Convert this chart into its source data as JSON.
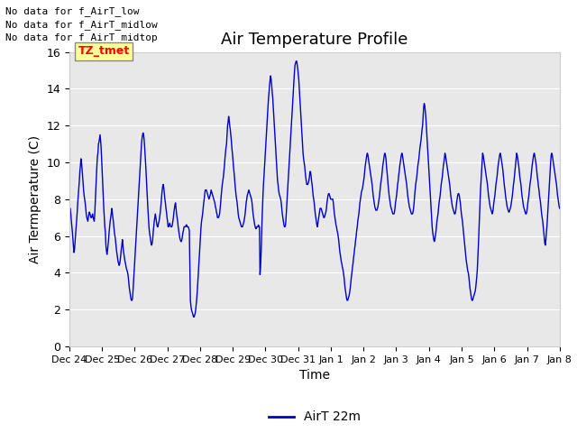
{
  "title": "Air Temperature Profile",
  "xlabel": "Time",
  "ylabel": "Air Termperature (C)",
  "legend_label": "AirT 22m",
  "line_color": "#0000cc",
  "ylim": [
    0,
    16
  ],
  "yticks": [
    0,
    2,
    4,
    6,
    8,
    10,
    12,
    14,
    16
  ],
  "annotations": [
    "No data for f_AirT_low",
    "No data for f_AirT_midlow",
    "No data for f_AirT_midtop"
  ],
  "annotation_box_label": "TZ_tmet",
  "x_tick_labels": [
    "Dec 24",
    "Dec 25",
    "Dec 26",
    "Dec 27",
    "Dec 28",
    "Dec 29",
    "Dec 30",
    "Dec 31",
    "Jan 1",
    "Jan 2",
    "Jan 3",
    "Jan 4",
    "Jan 5",
    "Jan 6",
    "Jan 7",
    "Jan 8"
  ],
  "temp_data": [
    7.1,
    7.3,
    7.5,
    7.2,
    6.8,
    6.5,
    6.2,
    5.8,
    5.4,
    5.1,
    5.3,
    5.7,
    6.1,
    6.5,
    6.9,
    7.3,
    7.8,
    8.2,
    8.6,
    9.0,
    9.5,
    9.8,
    10.2,
    10.0,
    9.7,
    9.3,
    8.9,
    8.5,
    8.2,
    8.0,
    7.8,
    7.5,
    7.2,
    7.0,
    6.9,
    6.8,
    7.0,
    7.2,
    7.3,
    7.2,
    7.1,
    7.0,
    7.0,
    7.1,
    7.2,
    7.0,
    6.9,
    6.8,
    7.2,
    7.8,
    8.5,
    9.2,
    9.8,
    10.3,
    10.5,
    11.0,
    11.1,
    11.3,
    11.5,
    11.2,
    10.8,
    10.2,
    9.5,
    8.8,
    8.0,
    7.5,
    7.0,
    6.5,
    6.2,
    5.5,
    5.2,
    5.0,
    5.2,
    5.5,
    5.8,
    6.2,
    6.5,
    6.8,
    7.0,
    7.2,
    7.5,
    7.3,
    7.0,
    6.8,
    6.5,
    6.2,
    6.0,
    5.8,
    5.5,
    5.2,
    5.0,
    4.8,
    4.6,
    4.5,
    4.4,
    4.5,
    4.7,
    5.0,
    5.3,
    5.5,
    5.8,
    5.5,
    5.2,
    5.0,
    4.8,
    4.6,
    4.5,
    4.3,
    4.2,
    4.1,
    4.0,
    3.8,
    3.5,
    3.2,
    3.0,
    2.8,
    2.6,
    2.5,
    2.5,
    2.6,
    3.0,
    3.5,
    4.0,
    4.5,
    5.0,
    5.5,
    6.0,
    6.5,
    7.0,
    7.5,
    8.0,
    8.5,
    9.0,
    9.5,
    10.0,
    10.5,
    11.0,
    11.3,
    11.5,
    11.6,
    11.5,
    11.2,
    10.8,
    10.3,
    9.8,
    9.2,
    8.6,
    8.0,
    7.5,
    7.0,
    6.5,
    6.2,
    6.0,
    5.8,
    5.6,
    5.5,
    5.6,
    5.8,
    6.2,
    6.5,
    6.8,
    7.0,
    7.2,
    7.0,
    6.8,
    6.6,
    6.5,
    6.5,
    6.7,
    6.8,
    7.0,
    7.2,
    7.5,
    7.8,
    8.2,
    8.5,
    8.7,
    8.8,
    8.6,
    8.3,
    8.0,
    7.8,
    7.5,
    7.3,
    7.0,
    6.8,
    6.5,
    6.5,
    6.6,
    6.7,
    6.6,
    6.5,
    6.5,
    6.5,
    6.6,
    6.8,
    7.0,
    7.3,
    7.5,
    7.7,
    7.8,
    7.5,
    7.2,
    7.0,
    6.8,
    6.5,
    6.3,
    6.1,
    5.9,
    5.8,
    5.7,
    5.7,
    5.8,
    6.0,
    6.2,
    6.3,
    6.5,
    6.5,
    6.5,
    6.5,
    6.6,
    6.6,
    6.5,
    6.5,
    6.5,
    6.4,
    6.3,
    4.4,
    2.5,
    2.2,
    2.0,
    1.9,
    1.8,
    1.7,
    1.6,
    1.6,
    1.7,
    1.8,
    2.0,
    2.3,
    2.6,
    3.0,
    3.5,
    4.0,
    4.5,
    5.0,
    5.5,
    6.0,
    6.5,
    6.8,
    7.0,
    7.2,
    7.5,
    7.8,
    8.0,
    8.3,
    8.5,
    8.5,
    8.5,
    8.4,
    8.3,
    8.2,
    8.1,
    8.0,
    8.1,
    8.2,
    8.3,
    8.5,
    8.4,
    8.3,
    8.2,
    8.1,
    8.0,
    7.9,
    7.8,
    7.6,
    7.5,
    7.3,
    7.2,
    7.0,
    7.0,
    7.0,
    7.1,
    7.2,
    7.5,
    7.8,
    8.2,
    8.5,
    8.8,
    9.0,
    9.2,
    9.5,
    9.8,
    10.2,
    10.5,
    10.8,
    11.0,
    11.5,
    12.0,
    12.2,
    12.5,
    12.3,
    12.0,
    11.8,
    11.5,
    11.2,
    10.8,
    10.5,
    10.2,
    9.8,
    9.5,
    9.2,
    8.8,
    8.5,
    8.2,
    8.0,
    7.8,
    7.5,
    7.2,
    7.0,
    6.9,
    6.8,
    6.7,
    6.6,
    6.5,
    6.5,
    6.5,
    6.6,
    6.7,
    6.8,
    7.0,
    7.2,
    7.5,
    7.8,
    8.0,
    8.2,
    8.3,
    8.4,
    8.5,
    8.4,
    8.3,
    8.2,
    8.1,
    8.0,
    7.8,
    7.5,
    7.2,
    7.0,
    6.8,
    6.6,
    6.5,
    6.4,
    6.4,
    6.5,
    6.5,
    6.5,
    6.6,
    6.5,
    6.5,
    3.9,
    4.3,
    5.0,
    6.0,
    7.0,
    7.8,
    8.5,
    9.0,
    9.5,
    10.0,
    10.5,
    11.0,
    11.5,
    12.0,
    12.5,
    13.0,
    13.5,
    13.8,
    14.2,
    14.5,
    14.7,
    14.5,
    14.2,
    13.8,
    13.5,
    13.0,
    12.5,
    12.0,
    11.5,
    11.0,
    10.5,
    10.0,
    9.5,
    9.0,
    8.8,
    8.5,
    8.3,
    8.2,
    8.1,
    8.0,
    7.8,
    7.5,
    7.2,
    7.0,
    6.8,
    6.6,
    6.5,
    6.5,
    6.6,
    7.0,
    7.5,
    8.0,
    8.5,
    9.0,
    9.5,
    10.0,
    10.5,
    11.0,
    11.5,
    12.0,
    12.5,
    13.0,
    13.5,
    14.0,
    14.5,
    15.0,
    15.3,
    15.4,
    15.5,
    15.5,
    15.3,
    15.1,
    14.8,
    14.5,
    14.0,
    13.5,
    13.0,
    12.5,
    12.0,
    11.5,
    11.0,
    10.5,
    10.2,
    10.0,
    9.8,
    9.5,
    9.2,
    9.0,
    8.8,
    8.8,
    8.8,
    8.9,
    9.0,
    9.2,
    9.5,
    9.5,
    9.3,
    9.0,
    8.8,
    8.5,
    8.2,
    8.0,
    7.8,
    7.5,
    7.2,
    7.0,
    6.8,
    6.6,
    6.5,
    6.7,
    6.9,
    7.1,
    7.3,
    7.5,
    7.5,
    7.5,
    7.4,
    7.3,
    7.2,
    7.1,
    7.0,
    7.0,
    7.1,
    7.2,
    7.3,
    7.5,
    7.8,
    8.0,
    8.2,
    8.3,
    8.3,
    8.2,
    8.1,
    8.0,
    8.0,
    8.0,
    8.0,
    8.0,
    7.8,
    7.5,
    7.2,
    7.0,
    6.8,
    6.6,
    6.5,
    6.3,
    6.2,
    6.0,
    5.8,
    5.5,
    5.2,
    5.0,
    4.8,
    4.6,
    4.5,
    4.3,
    4.2,
    4.0,
    3.8,
    3.5,
    3.2,
    3.0,
    2.8,
    2.6,
    2.5,
    2.5,
    2.6,
    2.7,
    2.8,
    3.0,
    3.2,
    3.5,
    3.8,
    4.0,
    4.3,
    4.5,
    4.8,
    5.0,
    5.3,
    5.5,
    5.8,
    6.0,
    6.3,
    6.5,
    6.8,
    7.0,
    7.2,
    7.5,
    7.8,
    8.0,
    8.2,
    8.4,
    8.5,
    8.6,
    8.8,
    9.0,
    9.2,
    9.5,
    9.8,
    10.0,
    10.2,
    10.4,
    10.5,
    10.4,
    10.2,
    10.0,
    9.8,
    9.6,
    9.4,
    9.2,
    9.0,
    8.8,
    8.5,
    8.2,
    8.0,
    7.8,
    7.6,
    7.5,
    7.4,
    7.4,
    7.4,
    7.5,
    7.6,
    7.8,
    8.0,
    8.2,
    8.5,
    8.8,
    9.0,
    9.2,
    9.5,
    9.8,
    10.0,
    10.2,
    10.4,
    10.5,
    10.4,
    10.2,
    9.8,
    9.5,
    9.2,
    8.8,
    8.5,
    8.2,
    8.0,
    7.8,
    7.6,
    7.5,
    7.4,
    7.3,
    7.2,
    7.2,
    7.2,
    7.3,
    7.5,
    7.8,
    8.0,
    8.2,
    8.5,
    8.8,
    9.0,
    9.3,
    9.5,
    9.8,
    10.0,
    10.2,
    10.4,
    10.5,
    10.4,
    10.2,
    10.0,
    9.8,
    9.6,
    9.4,
    9.2,
    9.0,
    8.8,
    8.5,
    8.2,
    8.0,
    7.8,
    7.6,
    7.5,
    7.4,
    7.3,
    7.2,
    7.2,
    7.2,
    7.3,
    7.5,
    7.8,
    8.2,
    8.5,
    8.8,
    9.0,
    9.2,
    9.5,
    9.8,
    10.0,
    10.2,
    10.5,
    10.8,
    11.0,
    11.2,
    11.5,
    11.8,
    12.0,
    12.5,
    13.0,
    13.2,
    13.1,
    12.8,
    12.5,
    12.0,
    11.5,
    11.0,
    10.5,
    10.0,
    9.5,
    9.0,
    8.5,
    8.0,
    7.5,
    7.0,
    6.5,
    6.2,
    6.0,
    5.8,
    5.7,
    5.8,
    6.0,
    6.2,
    6.5,
    6.8,
    7.0,
    7.2,
    7.5,
    7.8,
    8.0,
    8.2,
    8.5,
    8.8,
    9.0,
    9.2,
    9.5,
    9.8,
    10.0,
    10.2,
    10.5,
    10.4,
    10.2,
    10.0,
    9.8,
    9.6,
    9.4,
    9.2,
    9.0,
    8.8,
    8.5,
    8.2,
    8.0,
    7.8,
    7.6,
    7.5,
    7.4,
    7.3,
    7.2,
    7.2,
    7.3,
    7.5,
    7.8,
    8.0,
    8.2,
    8.3,
    8.3,
    8.2,
    8.0,
    7.8,
    7.5,
    7.2,
    7.0,
    6.8,
    6.5,
    6.2,
    5.9,
    5.6,
    5.3,
    5.0,
    4.7,
    4.5,
    4.3,
    4.1,
    4.0,
    3.8,
    3.5,
    3.2,
    3.0,
    2.8,
    2.6,
    2.5,
    2.5,
    2.6,
    2.7,
    2.8,
    2.9,
    3.0,
    3.2,
    3.5,
    3.8,
    4.2,
    4.8,
    5.5,
    6.2,
    7.0,
    7.8,
    8.5,
    9.0,
    9.5,
    10.0,
    10.5,
    10.4,
    10.2,
    10.0,
    9.8,
    9.6,
    9.4,
    9.2,
    9.0,
    8.8,
    8.5,
    8.2,
    8.0,
    7.8,
    7.6,
    7.5,
    7.4,
    7.3,
    7.2,
    7.3,
    7.5,
    7.8,
    8.0,
    8.2,
    8.5,
    8.8,
    9.0,
    9.2,
    9.5,
    9.8,
    10.0,
    10.2,
    10.4,
    10.5,
    10.4,
    10.2,
    10.0,
    9.8,
    9.6,
    9.3,
    9.0,
    8.7,
    8.5,
    8.2,
    8.0,
    7.8,
    7.6,
    7.5,
    7.4,
    7.3,
    7.3,
    7.4,
    7.5,
    7.6,
    7.8,
    8.0,
    8.2,
    8.5,
    8.8,
    9.0,
    9.3,
    9.6,
    9.9,
    10.2,
    10.5,
    10.4,
    10.2,
    10.0,
    9.8,
    9.5,
    9.2,
    9.0,
    8.8,
    8.5,
    8.2,
    8.0,
    7.8,
    7.6,
    7.5,
    7.4,
    7.3,
    7.2,
    7.2,
    7.3,
    7.5,
    7.8,
    8.0,
    8.2,
    8.5,
    8.8,
    9.0,
    9.2,
    9.5,
    9.8,
    10.0,
    10.2,
    10.4,
    10.5,
    10.4,
    10.2,
    10.0,
    9.8,
    9.5,
    9.2,
    9.0,
    8.7,
    8.5,
    8.2,
    8.0,
    7.8,
    7.5,
    7.2,
    7.0,
    6.8,
    6.5,
    6.2,
    5.9,
    5.6,
    5.5,
    5.8,
    6.2,
    6.5,
    7.0,
    7.5,
    8.0,
    8.5,
    9.0,
    9.5,
    10.0,
    10.4,
    10.5,
    10.4,
    10.2,
    10.0,
    9.8,
    9.6,
    9.4,
    9.2,
    9.0,
    8.8,
    8.5,
    8.2,
    8.0,
    7.8,
    7.6,
    7.5
  ]
}
